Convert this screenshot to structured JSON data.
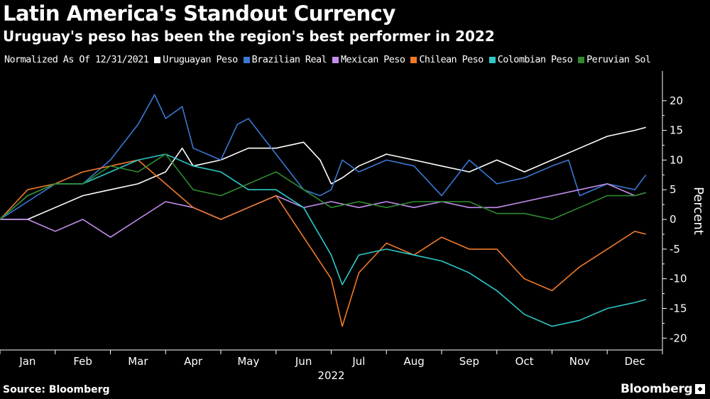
{
  "header": {
    "title": "Latin America's Standout Currency",
    "subtitle": "Uruguay's peso has been the region's best performer in 2022"
  },
  "legend": {
    "prefix": "Normalized As Of 12/31/2021"
  },
  "footer": {
    "source": "Source: Bloomberg",
    "brand": "Bloomberg"
  },
  "chart_data": {
    "type": "line",
    "title": "Latin America's Standout Currency",
    "subtitle": "Uruguay's peso has been the region's best performer in 2022",
    "xlabel": "2022",
    "ylabel": "Percent",
    "ylim": [
      -22,
      25
    ],
    "yticks": [
      -20,
      -15,
      -10,
      -5,
      0,
      5,
      10,
      15,
      20
    ],
    "x_tick_labels": [
      "Jan",
      "Feb",
      "Mar",
      "Apr",
      "May",
      "Jun",
      "Jul",
      "Aug",
      "Sep",
      "Oct",
      "Nov",
      "Dec"
    ],
    "x_year_label": "2022",
    "xlim": [
      0,
      12
    ],
    "y_axis_position": "right",
    "legend_position": "top",
    "grid": false,
    "series": [
      {
        "name": "Uruguayan Peso",
        "color": "#ffffff",
        "x": [
          0,
          0.5,
          1,
          1.5,
          2,
          2.5,
          3,
          3.3,
          3.5,
          4,
          4.5,
          5,
          5.5,
          5.8,
          6,
          6.2,
          6.5,
          7,
          7.5,
          8,
          8.5,
          9,
          9.5,
          10,
          10.5,
          11,
          11.5,
          11.7
        ],
        "y": [
          0,
          0,
          2,
          4,
          5,
          6,
          8,
          12,
          9,
          10,
          12,
          12,
          13,
          10,
          6,
          7,
          9,
          11,
          10,
          9,
          8,
          10,
          8,
          10,
          12,
          14,
          15,
          15.5
        ]
      },
      {
        "name": "Brazilian Real",
        "color": "#3a78d4",
        "x": [
          0,
          0.5,
          1,
          1.5,
          2,
          2.5,
          2.8,
          3,
          3.3,
          3.5,
          4,
          4.3,
          4.5,
          5,
          5.5,
          5.8,
          6,
          6.2,
          6.5,
          7,
          7.5,
          8,
          8.5,
          9,
          9.5,
          10,
          10.3,
          10.5,
          11,
          11.5,
          11.7
        ],
        "y": [
          0,
          3,
          6,
          6,
          10,
          16,
          21,
          17,
          19,
          12,
          10,
          16,
          17,
          11,
          5,
          4,
          5,
          10,
          8,
          10,
          9,
          4,
          10,
          6,
          7,
          9,
          10,
          4,
          6,
          5,
          7.5
        ]
      },
      {
        "name": "Mexican Peso",
        "color": "#c48ef0",
        "x": [
          0,
          0.5,
          1,
          1.5,
          2,
          2.5,
          3,
          3.5,
          4,
          4.5,
          5,
          5.5,
          6,
          6.5,
          7,
          7.5,
          8,
          8.5,
          9,
          9.5,
          10,
          10.5,
          11,
          11.5,
          11.7
        ],
        "y": [
          0,
          0,
          -2,
          0,
          -3,
          0,
          3,
          2,
          0,
          2,
          4,
          2,
          3,
          2,
          3,
          2,
          3,
          2,
          2,
          3,
          4,
          5,
          6,
          4,
          4.5
        ]
      },
      {
        "name": "Chilean Peso",
        "color": "#f07a2a",
        "x": [
          0,
          0.5,
          1,
          1.5,
          2,
          2.5,
          3,
          3.5,
          4,
          4.5,
          5,
          5.5,
          6,
          6.2,
          6.5,
          7,
          7.5,
          8,
          8.5,
          9,
          9.5,
          10,
          10.5,
          11,
          11.5,
          11.7
        ],
        "y": [
          0,
          5,
          6,
          8,
          9,
          10,
          6,
          2,
          0,
          2,
          4,
          -3,
          -10,
          -18,
          -9,
          -4,
          -6,
          -3,
          -5,
          -5,
          -10,
          -12,
          -8,
          -5,
          -2,
          -2.5
        ]
      },
      {
        "name": "Colombian Peso",
        "color": "#2ec8c8",
        "x": [
          0,
          0.5,
          1,
          1.5,
          2,
          2.5,
          3,
          3.5,
          4,
          4.5,
          5,
          5.5,
          6,
          6.2,
          6.5,
          7,
          7.5,
          8,
          8.5,
          9,
          9.5,
          10,
          10.5,
          11,
          11.5,
          11.7
        ],
        "y": [
          0,
          4,
          6,
          6,
          8,
          10,
          11,
          9,
          8,
          5,
          5,
          2,
          -6,
          -11,
          -6,
          -5,
          -6,
          -7,
          -9,
          -12,
          -16,
          -18,
          -17,
          -15,
          -14,
          -13.5
        ]
      },
      {
        "name": "Peruvian Sol",
        "color": "#2e8b2e",
        "x": [
          0,
          0.5,
          1,
          1.5,
          2,
          2.5,
          3,
          3.5,
          4,
          4.5,
          5,
          5.5,
          6,
          6.5,
          7,
          7.5,
          8,
          8.5,
          9,
          9.5,
          10,
          10.5,
          11,
          11.5,
          11.7
        ],
        "y": [
          0,
          4,
          6,
          6,
          9,
          8,
          11,
          5,
          4,
          6,
          8,
          5,
          2,
          3,
          2,
          3,
          3,
          3,
          1,
          1,
          0,
          2,
          4,
          4,
          4.5
        ]
      }
    ]
  }
}
